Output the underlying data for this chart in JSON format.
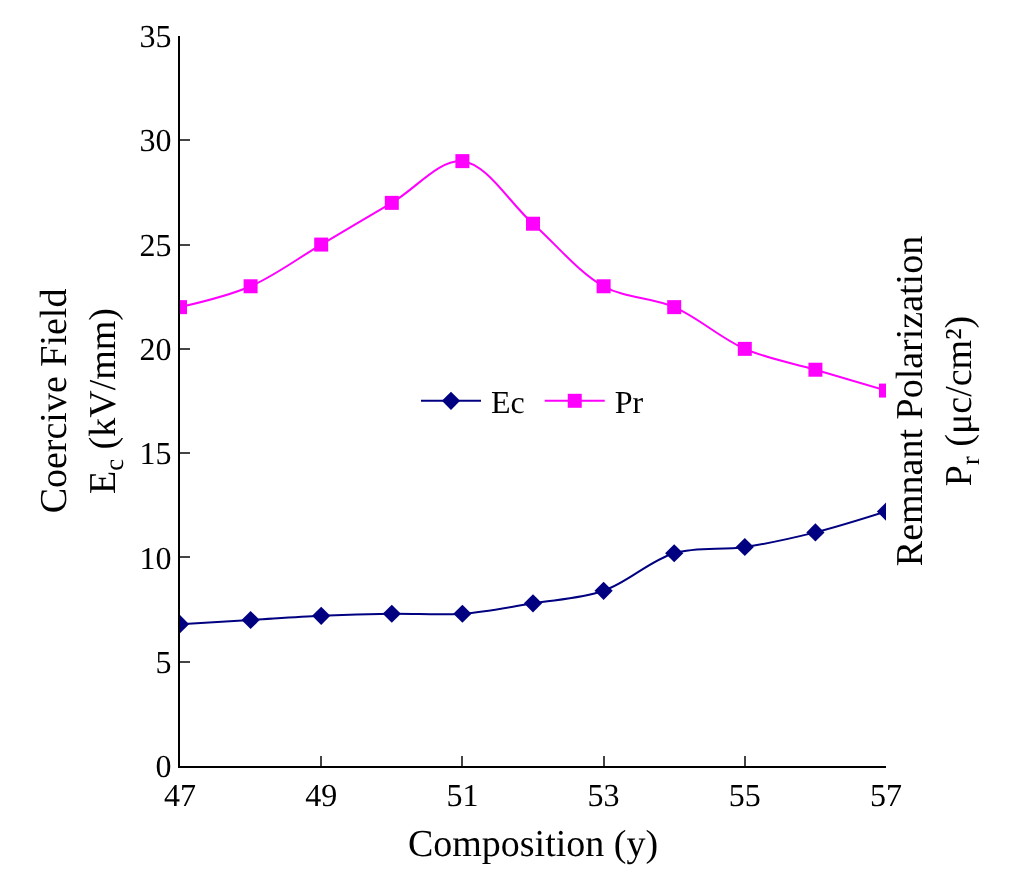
{
  "chart_data": {
    "type": "line",
    "xlabel": "Composition (y)",
    "ylabel": "Coercive Field\nE$_{c}$ (kV/mm)",
    "y2label": "Remnant Polarization\nP$_{r}$ (μc/cm²)",
    "x": [
      47,
      48,
      49,
      50,
      51,
      52,
      53,
      54,
      55,
      56,
      57
    ],
    "series": [
      {
        "name": "Ec",
        "color": "#000080",
        "marker": "diamond",
        "values": [
          6.8,
          7.0,
          7.2,
          7.3,
          7.3,
          7.8,
          8.4,
          10.2,
          10.5,
          11.2,
          12.2
        ]
      },
      {
        "name": "Pr",
        "color": "#ff00ff",
        "marker": "square",
        "values": [
          22,
          23,
          25,
          27,
          29,
          26,
          23,
          22,
          20,
          19,
          18
        ]
      }
    ],
    "xlim": [
      47,
      57
    ],
    "xticks": [
      47,
      49,
      51,
      53,
      55,
      57
    ],
    "ylim": [
      0,
      35
    ],
    "yticks": [
      0,
      5,
      10,
      15,
      20,
      25,
      30,
      35
    ],
    "grid": false,
    "legend": "center",
    "line_style": "solid"
  }
}
